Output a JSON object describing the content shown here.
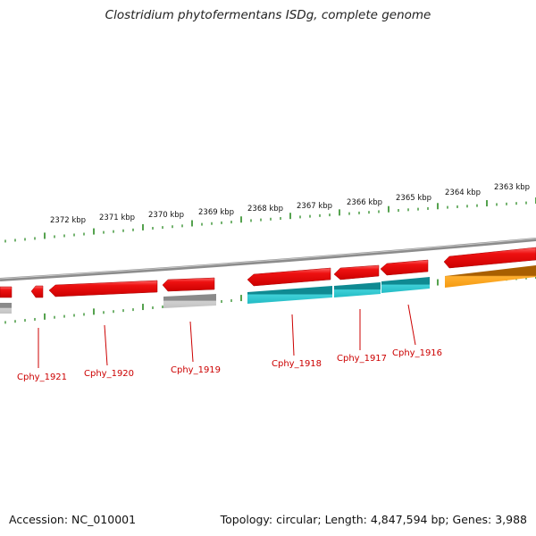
{
  "title": "Clostridium phytofermentans ISDg, complete genome",
  "footer": {
    "accession": "Accession: NC_010001",
    "summary": "Topology: circular; Length: 4,847,594 bp; Genes: 3,988"
  },
  "scale": {
    "ticks": [
      "2372 kbp",
      "2371 kbp",
      "2370 kbp",
      "2369 kbp",
      "2368 kbp",
      "2367 kbp",
      "2366 kbp",
      "2365 kbp",
      "2364 kbp",
      "2363 kbp"
    ]
  },
  "genes": {
    "labels": [
      "Cphy_1921",
      "Cphy_1920",
      "Cphy_1919",
      "Cphy_1918",
      "Cphy_1917",
      "Cphy_1916"
    ]
  },
  "colors": {
    "gene_red": "#ee1111",
    "cds_grey": "#b5b5b5",
    "cds_cyan": "#22bbc4",
    "cds_orange": "#f59a10",
    "tick_green": "#2a8a22",
    "backbone": "#8c8c8c",
    "label_red": "#cc0000"
  }
}
